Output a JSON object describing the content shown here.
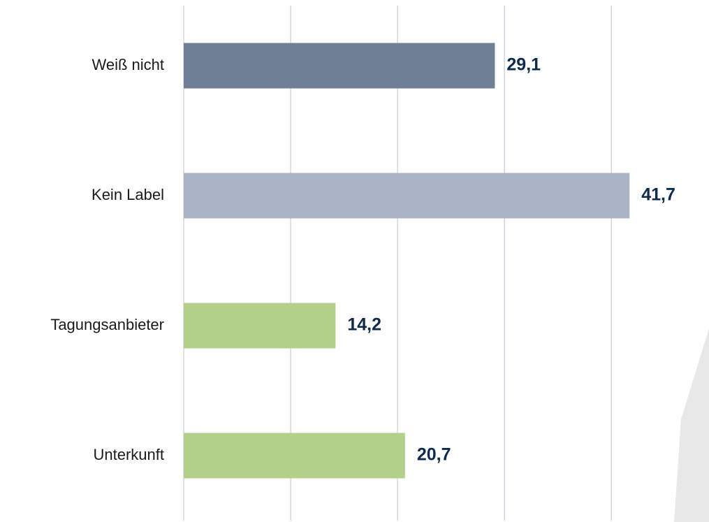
{
  "chart_data": {
    "type": "hbar",
    "categories": [
      "Weiß nicht",
      "Kein Label",
      "Tagungsanbieter",
      "Unterkunft"
    ],
    "values": [
      29.1,
      41.7,
      14.2,
      20.7
    ],
    "value_labels": [
      "29,1",
      "41,7",
      "14,2",
      "20,7"
    ],
    "colors": [
      "#6e7f96",
      "#aab4c4",
      "#b3d08a",
      "#b3d08a"
    ],
    "xlim": [
      0,
      49
    ],
    "xticks": [
      0,
      10,
      20,
      30,
      40
    ],
    "grid": true
  }
}
